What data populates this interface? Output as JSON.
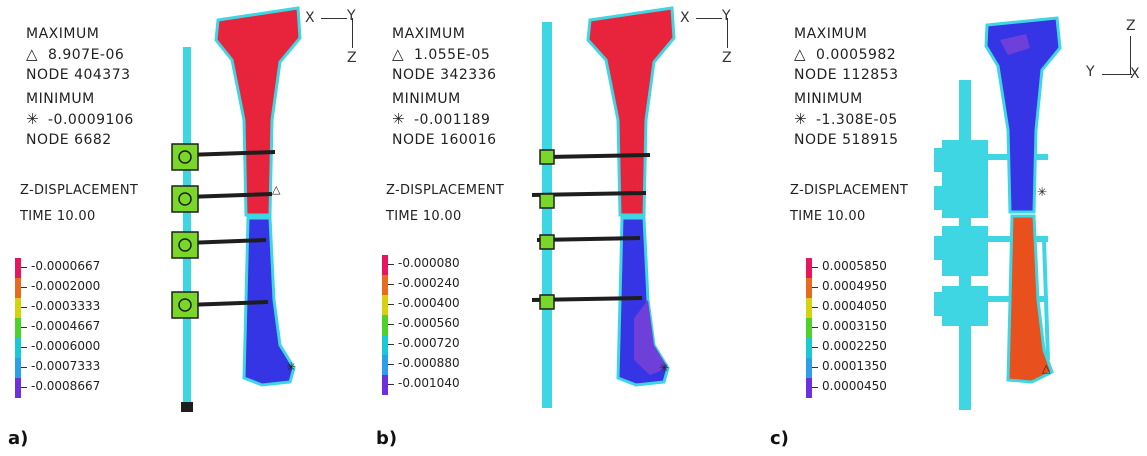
{
  "panels": [
    {
      "label": "a)",
      "maximum_title": "MAXIMUM",
      "maximum_value": "8.907E-06",
      "maximum_node": "NODE 404373",
      "minimum_title": "MINIMUM",
      "minimum_value": "-0.0009106",
      "minimum_node": "NODE 6682",
      "quantity": "Z-DISPLACEMENT",
      "time": "TIME 10.00",
      "legend": [
        "-0.0000667",
        "-0.0002000",
        "-0.0003333",
        "-0.0004667",
        "-0.0006000",
        "-0.0007333",
        "-0.0008667"
      ],
      "axes": {
        "horizontal": "X",
        "top": "Y",
        "vertical": "Z"
      }
    },
    {
      "label": "b)",
      "maximum_title": "MAXIMUM",
      "maximum_value": "1.055E-05",
      "maximum_node": "NODE 342336",
      "minimum_title": "MINIMUM",
      "minimum_value": "-0.001189",
      "minimum_node": "NODE 160016",
      "quantity": "Z-DISPLACEMENT",
      "time": "TIME 10.00",
      "legend": [
        "-0.000080",
        "-0.000240",
        "-0.000400",
        "-0.000560",
        "-0.000720",
        "-0.000880",
        "-0.001040"
      ],
      "axes": {
        "horizontal": "X",
        "top": "Y",
        "vertical": "Z"
      }
    },
    {
      "label": "c)",
      "maximum_title": "MAXIMUM",
      "maximum_value": "0.0005982",
      "maximum_node": "NODE 112853",
      "minimum_title": "MINIMUM",
      "minimum_value": "-1.308E-05",
      "minimum_node": "NODE 518915",
      "quantity": "Z-DISPLACEMENT",
      "time": "TIME 10.00",
      "legend": [
        "0.0005850",
        "0.0004950",
        "0.0004050",
        "0.0003150",
        "0.0002250",
        "0.0001350",
        "0.0000450"
      ],
      "axes": {
        "horizontal": "Y",
        "top": "Z",
        "vertical": "X"
      }
    }
  ],
  "symbols": {
    "maximum": "△",
    "minimum": "✳"
  },
  "legend_colors": [
    "#e8175d",
    "#e86a1e",
    "#d6d20d",
    "#4fd12c",
    "#19c9d6",
    "#2aa0e8",
    "#6d2fe0"
  ],
  "model_colors": {
    "red": "#e8243c",
    "blue": "#3535e6",
    "cyan": "#3fd6e3",
    "green": "#7bd62a",
    "orange": "#e8501e",
    "purple": "#6e3fd9",
    "dark": "#1e1e1e"
  }
}
